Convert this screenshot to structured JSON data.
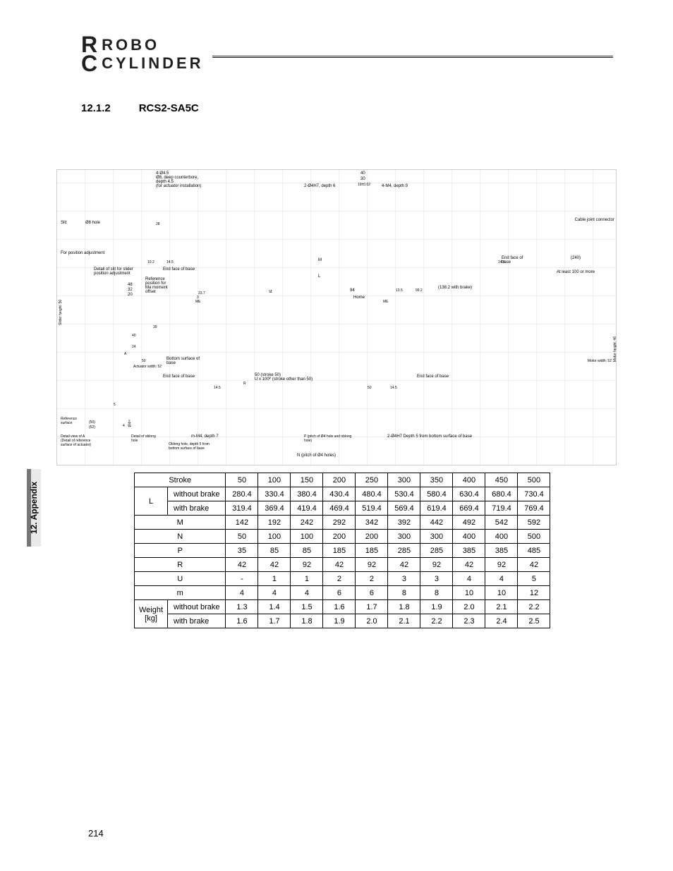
{
  "logo": {
    "line1": "ROBO",
    "line2": "CYLINDER",
    "rc_top": "R",
    "rc_bottom": "C"
  },
  "section": {
    "number": "12.1.2",
    "title": "RCS2-SA5C"
  },
  "side_tab": "12. Appendix",
  "page_number": "214",
  "diagram": {
    "labels": {
      "a": "4-Ø4.5\nØ8, deep counterbore,\ndepth 4.5\n(for actuator installation)",
      "b": "2-Ø4H7, depth 6",
      "c": "4-M4, depth 9",
      "d": "Slit",
      "e": "Ø8 hole",
      "f": "For position adjustment",
      "g": "Detail of slit for slider\nposition adjustment",
      "h": "End face of base",
      "i": "Cable joint connector",
      "j": "End face of\nbase",
      "k": "(240)",
      "l": "At least 100 or more",
      "m": "Reference\nposition for\nMa moment\noffset",
      "n": "(138.2 with brake)",
      "o": "Home",
      "p": "Bottom surface of\nbase",
      "q": "Actuator width: 52",
      "r": "Slider height: 50",
      "s": "Motor height: 46",
      "t": "Motor width: 52",
      "u": "End face of base",
      "v": "50 (stroke 50)\nU x 100ᴾ (stroke other than 50)",
      "w": "End face of base",
      "x": "Reference\nsurface",
      "y": "Detail view of A\n(Detail of reference\nsurface of actuator)",
      "z": "Detail of oblong\nhole",
      "aa": "m-M4, depth 7",
      "ab": "Oblong hole, depth 5 from\nbottom surface of base",
      "ac": "P (pitch of Ø4 hole and oblong\nhole)",
      "ad": "2-Ø4H7 Depth 5 from bottom surface of base",
      "ae": "N (pitch of Ø4 holes)",
      "af": "R"
    },
    "dims": {
      "top_40": "40",
      "top_30": "30",
      "top_19": "19±0.02",
      "left_48": "48",
      "left_32": "32",
      "left_20": "20",
      "mid_10_2": "10.2",
      "mid_14_5": "14.5",
      "M": "M",
      "L": "L",
      "mid_23_7": "23.7",
      "st": "st",
      "mid_3": "3",
      "mid_94": "94",
      "mid_13_5": "13.5",
      "mid_99_2": "99.2",
      "ME": "ME",
      "mid_39": "39",
      "mid_40": "40",
      "mid_24": "24",
      "A": "A",
      "mid_50": "50",
      "mid_14_5b": "14.5",
      "bot_50": "50",
      "bot_14_5": "14.5",
      "det_50a": "(50)",
      "det_52": "(52)",
      "det_5": "5",
      "det_4": "4",
      "det_phi4": "Ø4ᴴ⁷",
      "det_28": "28"
    }
  },
  "table": {
    "header": "Stroke",
    "strokes": [
      "50",
      "100",
      "150",
      "200",
      "250",
      "300",
      "350",
      "400",
      "450",
      "500"
    ],
    "rows": [
      {
        "group": "L",
        "label": "without brake",
        "vals": [
          "280.4",
          "330.4",
          "380.4",
          "430.4",
          "480.4",
          "530.4",
          "580.4",
          "630.4",
          "680.4",
          "730.4"
        ]
      },
      {
        "group": "",
        "label": "with brake",
        "vals": [
          "319.4",
          "369.4",
          "419.4",
          "469.4",
          "519.4",
          "569.4",
          "619.4",
          "669.4",
          "719.4",
          "769.4"
        ]
      },
      {
        "group": "M",
        "label": "",
        "vals": [
          "142",
          "192",
          "242",
          "292",
          "342",
          "392",
          "442",
          "492",
          "542",
          "592"
        ]
      },
      {
        "group": "N",
        "label": "",
        "vals": [
          "50",
          "100",
          "100",
          "200",
          "200",
          "300",
          "300",
          "400",
          "400",
          "500"
        ]
      },
      {
        "group": "P",
        "label": "",
        "vals": [
          "35",
          "85",
          "85",
          "185",
          "185",
          "285",
          "285",
          "385",
          "385",
          "485"
        ]
      },
      {
        "group": "R",
        "label": "",
        "vals": [
          "42",
          "42",
          "92",
          "42",
          "92",
          "42",
          "92",
          "42",
          "92",
          "42"
        ]
      },
      {
        "group": "U",
        "label": "",
        "vals": [
          "-",
          "1",
          "1",
          "2",
          "2",
          "3",
          "3",
          "4",
          "4",
          "5"
        ]
      },
      {
        "group": "m",
        "label": "",
        "vals": [
          "4",
          "4",
          "4",
          "6",
          "6",
          "8",
          "8",
          "10",
          "10",
          "12"
        ]
      },
      {
        "group": "Weight\n[kg]",
        "label": "without brake",
        "vals": [
          "1.3",
          "1.4",
          "1.5",
          "1.6",
          "1.7",
          "1.8",
          "1.9",
          "2.0",
          "2.1",
          "2.2"
        ]
      },
      {
        "group": "",
        "label": "with brake",
        "vals": [
          "1.6",
          "1.7",
          "1.8",
          "1.9",
          "2.0",
          "2.1",
          "2.2",
          "2.3",
          "2.4",
          "2.5"
        ]
      }
    ]
  }
}
